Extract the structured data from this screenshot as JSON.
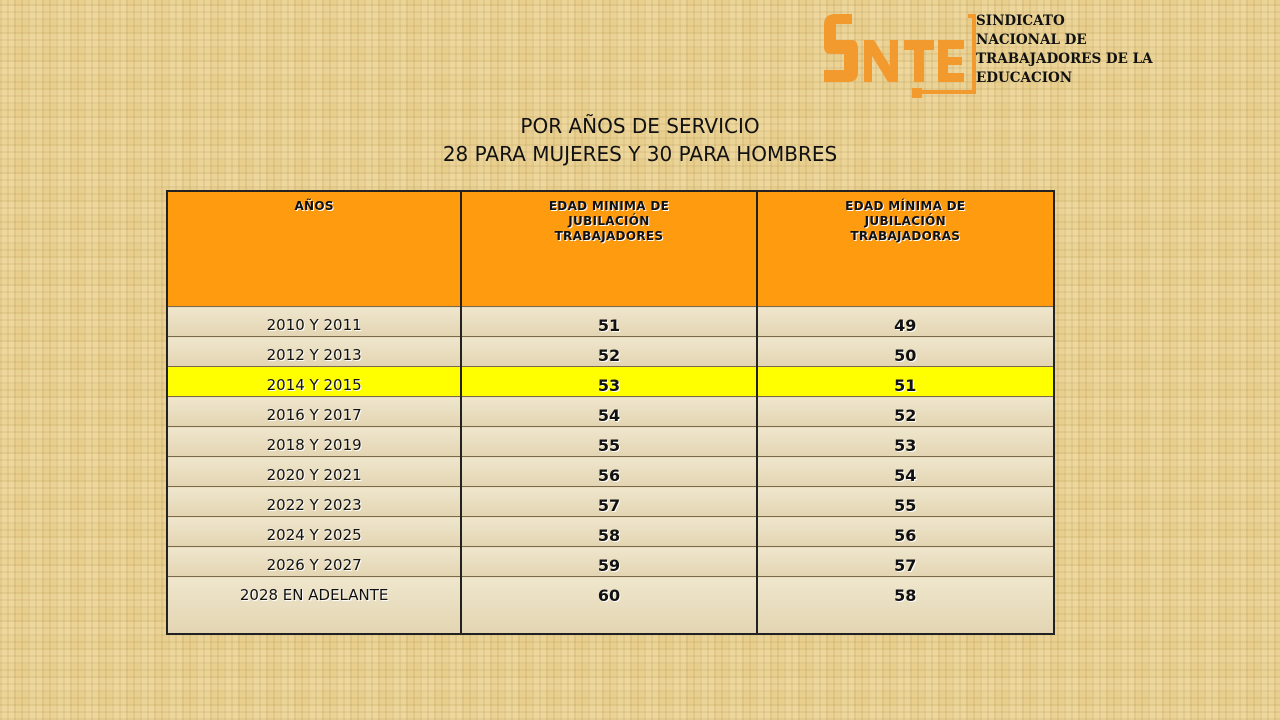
{
  "logo": {
    "mark": "SNTE",
    "text_lines": [
      "SINDICATO",
      "NACIONAL DE",
      "TRABAJADORES DE LA",
      "EDUCACION"
    ],
    "color": "#f29a2e"
  },
  "title": {
    "line1": "POR AÑOS DE SERVICIO",
    "line2": "28 PARA MUJERES Y 30 PARA HOMBRES"
  },
  "table": {
    "headers": {
      "years": "AÑOS",
      "men": [
        "EDAD MINIMA DE",
        "JUBILACIÓN",
        "TRABAJADORES"
      ],
      "women": [
        "EDAD MÍNIMA DE",
        "JUBILACIÓN",
        "TRABAJADORAS"
      ]
    },
    "header_color": "#ff9b0f",
    "highlight_color": "#ffff00",
    "rows": [
      {
        "years": "2010 Y 2011",
        "men": "51",
        "women": "49"
      },
      {
        "years": "2012 Y 2013",
        "men": "52",
        "women": "50"
      },
      {
        "years": "2014 Y 2015",
        "men": "53",
        "women": "51"
      },
      {
        "years": "2016 Y 2017",
        "men": "54",
        "women": "52"
      },
      {
        "years": "2018 Y 2019",
        "men": "55",
        "women": "53"
      },
      {
        "years": "2020 Y 2021",
        "men": "56",
        "women": "54"
      },
      {
        "years": "2022 Y 2023",
        "men": "57",
        "women": "55"
      },
      {
        "years": "2024 Y 2025",
        "men": "58",
        "women": "56"
      },
      {
        "years": "2026 Y 2027",
        "men": "59",
        "women": "57"
      },
      {
        "years": "2028 EN ADELANTE",
        "men": "60",
        "women": "58"
      }
    ]
  }
}
